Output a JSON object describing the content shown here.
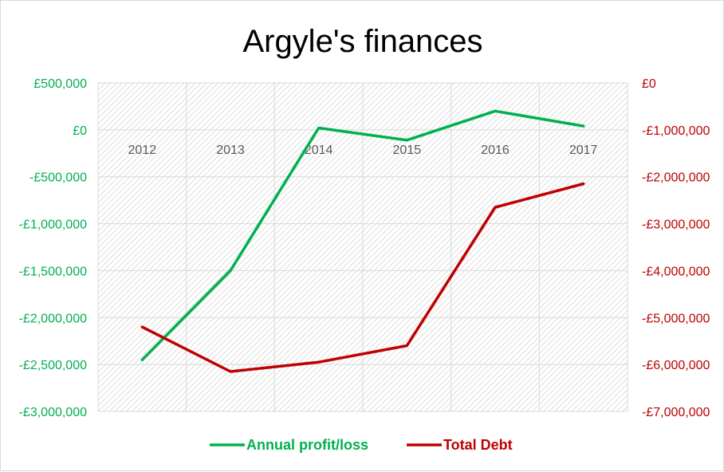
{
  "chart_data": {
    "type": "line",
    "title": "Argyle's finances",
    "categories": [
      "2012",
      "2013",
      "2014",
      "2015",
      "2016",
      "2017"
    ],
    "y_left": {
      "ylim": [
        -3000000,
        500000
      ],
      "ticks": [
        500000,
        0,
        -500000,
        -1000000,
        -1500000,
        -2000000,
        -2500000,
        -3000000
      ],
      "tick_labels": [
        "£500,000",
        "£0",
        "-£500,000",
        "-£1,000,000",
        "-£1,500,000",
        "-£2,000,000",
        "-£2,500,000",
        "-£3,000,000"
      ],
      "color": "#00b050"
    },
    "y_right": {
      "ylim": [
        -7000000,
        0
      ],
      "ticks": [
        0,
        -1000000,
        -2000000,
        -3000000,
        -4000000,
        -5000000,
        -6000000,
        -7000000
      ],
      "tick_labels": [
        "£0",
        "-£1,000,000",
        "-£2,000,000",
        "-£3,000,000",
        "-£4,000,000",
        "-£5,000,000",
        "-£6,000,000",
        "-£7,000,000"
      ],
      "color": "#c00000"
    },
    "series": [
      {
        "name": "Annual profit/loss",
        "axis": "left",
        "color": "#00b050",
        "values": [
          -2450000,
          -1500000,
          20000,
          -110000,
          200000,
          40000
        ]
      },
      {
        "name": "Total Debt",
        "axis": "right",
        "color": "#c00000",
        "values": [
          -5200000,
          -6150000,
          -5950000,
          -5600000,
          -2650000,
          -2150000
        ]
      }
    ],
    "grid": true,
    "legend": "bottom"
  }
}
